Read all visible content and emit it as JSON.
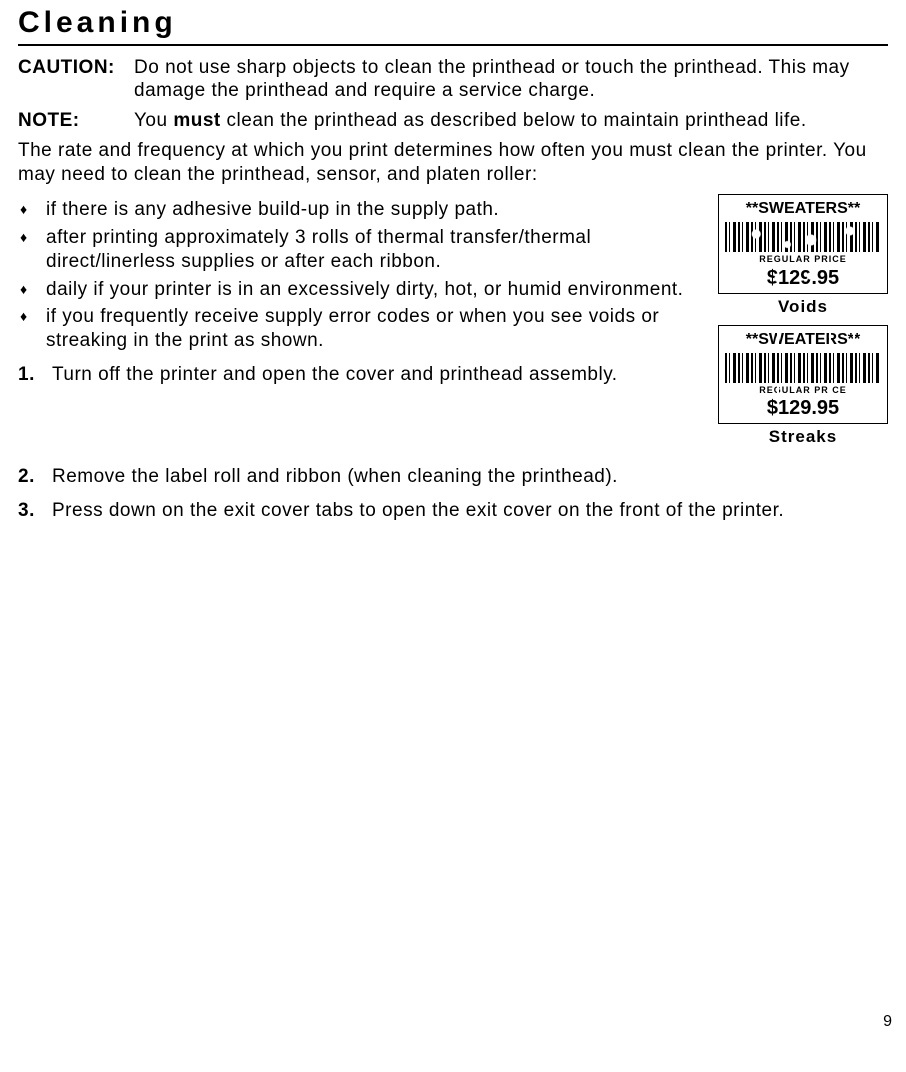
{
  "heading": "Cleaning",
  "caution_label": "CAUTION:",
  "caution_text": "Do not use sharp objects to clean the printhead or touch the printhead. This may damage the printhead and require a service charge.",
  "note_label": "NOTE:",
  "note_pre": "You ",
  "note_bold": "must",
  "note_post": " clean the printhead as described below to maintain printhead life.",
  "intro": "The rate and frequency at which you print determines how often you must clean the printer.  You may need to clean the printhead, sensor, and platen roller:",
  "bullets": [
    "if there is any adhesive build-up in the supply path.",
    "after printing approximately 3 rolls of thermal transfer/thermal direct/linerless supplies or after each ribbon.",
    "daily if your printer is in an excessively dirty, hot, or humid environment.",
    "if you frequently receive supply error codes or when you see voids or streaking in the print as shown."
  ],
  "steps": [
    "Turn off the printer and open the cover and printhead assembly.",
    "Remove the label roll and ribbon (when cleaning the printhead).",
    "Press down on the exit cover tabs to open the exit cover on the front of the printer."
  ],
  "label": {
    "title": "**SWEATERS**",
    "sub": "REGULAR PRICE",
    "price": "$129.95"
  },
  "cap_voids": "Voids",
  "cap_streaks": "Streaks",
  "page_number": "9",
  "colors": {
    "text": "#000",
    "bg": "#fff"
  }
}
